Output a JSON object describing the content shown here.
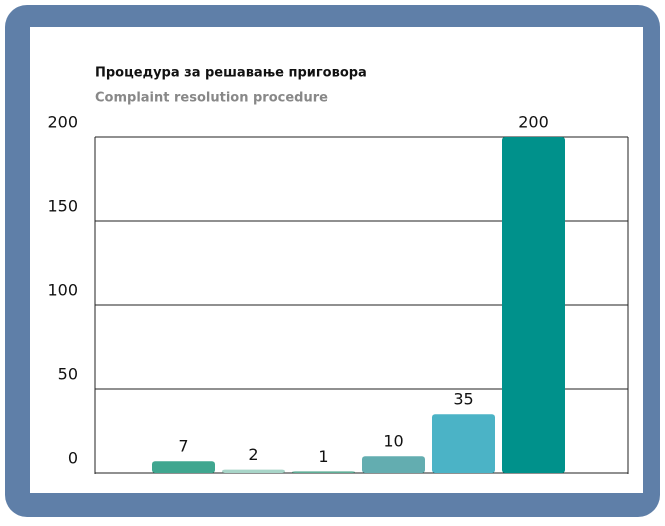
{
  "chart_data": {
    "type": "bar",
    "title": "Процедура за решавање приговора",
    "subtitle": "Complaint resolution procedure",
    "categories": [
      null,
      null,
      null,
      null,
      null,
      null
    ],
    "values": [
      7,
      2,
      1,
      10,
      35,
      200
    ],
    "colors": [
      "#3fa68f",
      "#a8d5c8",
      "#5fae96",
      "#63adb0",
      "#4bb3c6",
      "#00918b"
    ],
    "ylim": [
      0,
      200
    ],
    "yticks": [
      0,
      50,
      100,
      150,
      200
    ],
    "grid": true
  }
}
